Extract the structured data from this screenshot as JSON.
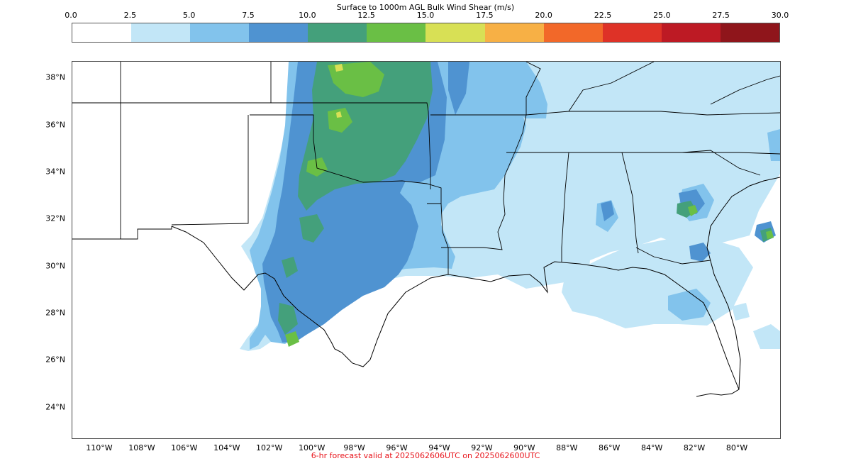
{
  "colorbar": {
    "title": "Surface to 1000m AGL Bulk Wind Shear (m/s)",
    "ticks": [
      "0.0",
      "2.5",
      "5.0",
      "7.5",
      "10.0",
      "12.5",
      "15.0",
      "17.5",
      "20.0",
      "22.5",
      "25.0",
      "27.5",
      "30.0"
    ],
    "colors": [
      "#ffffff",
      "#c2e6f7",
      "#82c3ec",
      "#4f93d1",
      "#44a07b",
      "#6abf45",
      "#d8e055",
      "#f7b045",
      "#f26829",
      "#de3227",
      "#bd1a24",
      "#8f151b"
    ]
  },
  "map": {
    "lon_range": [
      -111.3,
      -78.0
    ],
    "lat_range": [
      22.7,
      38.7
    ],
    "lat_labels": [
      {
        "value": 38,
        "label": "38°N"
      },
      {
        "value": 36,
        "label": "36°N"
      },
      {
        "value": 34,
        "label": "34°N"
      },
      {
        "value": 32,
        "label": "32°N"
      },
      {
        "value": 30,
        "label": "30°N"
      },
      {
        "value": 28,
        "label": "28°N"
      },
      {
        "value": 26,
        "label": "26°N"
      },
      {
        "value": 24,
        "label": "24°N"
      }
    ],
    "lon_labels": [
      {
        "value": -110,
        "label": "110°W"
      },
      {
        "value": -108,
        "label": "108°W"
      },
      {
        "value": -106,
        "label": "106°W"
      },
      {
        "value": -104,
        "label": "104°W"
      },
      {
        "value": -102,
        "label": "102°W"
      },
      {
        "value": -100,
        "label": "100°W"
      },
      {
        "value": -98,
        "label": "98°W"
      },
      {
        "value": -96,
        "label": "96°W"
      },
      {
        "value": -94,
        "label": "94°W"
      },
      {
        "value": -92,
        "label": "92°W"
      },
      {
        "value": -90,
        "label": "90°W"
      },
      {
        "value": -88,
        "label": "88°W"
      },
      {
        "value": -86,
        "label": "86°W"
      },
      {
        "value": -84,
        "label": "84°W"
      },
      {
        "value": -82,
        "label": "82°W"
      },
      {
        "value": -80,
        "label": "80°W"
      }
    ]
  },
  "footer": {
    "text": "6-hr forecast valid at 2025062606UTC on 2025062600UTC"
  }
}
